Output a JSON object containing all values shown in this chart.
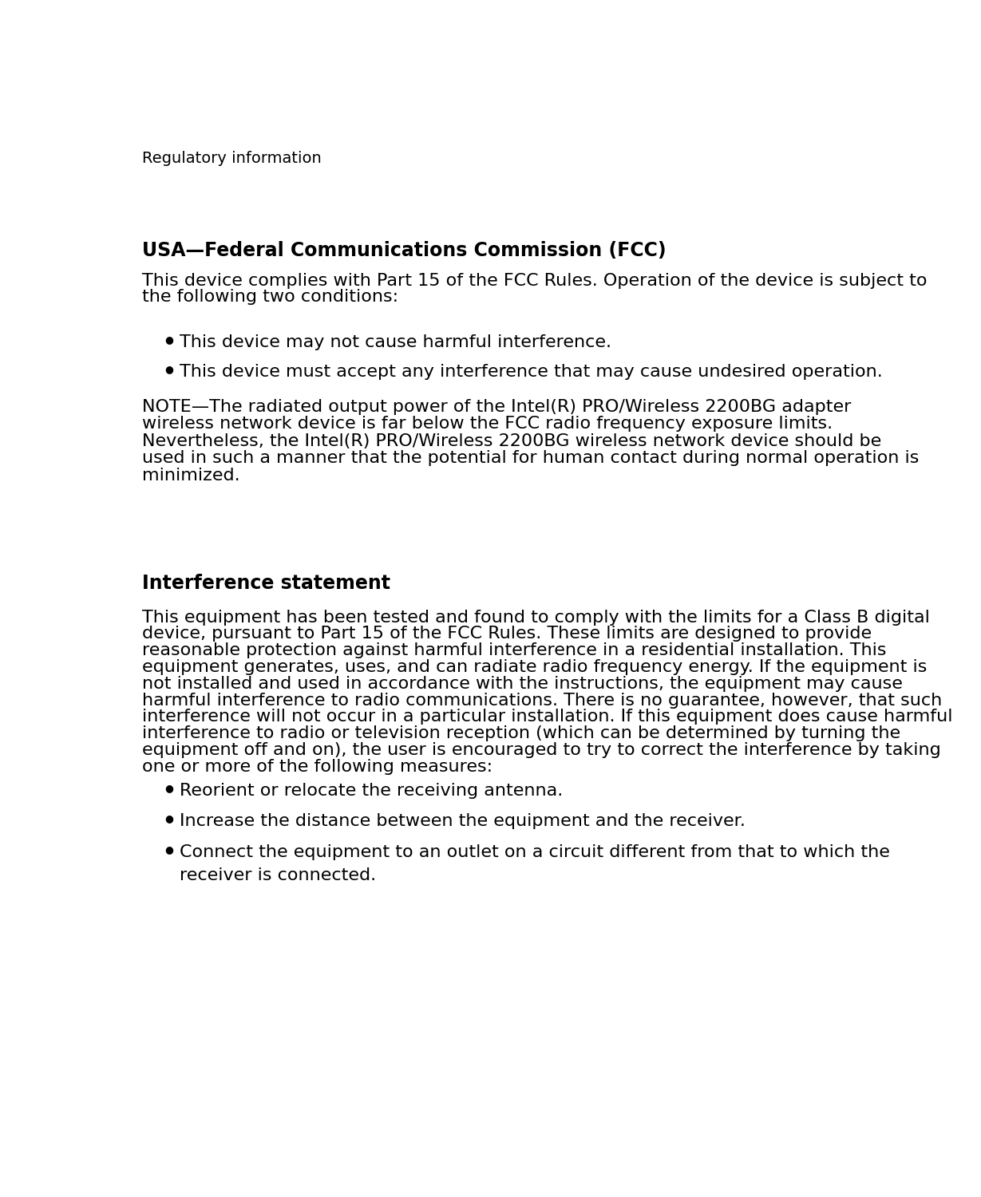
{
  "background_color": "#ffffff",
  "page_header": "Regulatory information",
  "header_fontsize": 14,
  "section1_title": "USA—Federal Communications Commission (FCC)",
  "section1_title_fontsize": 17,
  "section1_body_line1": "This device complies with Part 15 of the FCC Rules. Operation of the device is subject to",
  "section1_body_line2": "the following two conditions:",
  "section1_bullets": [
    "This device may not cause harmful interference.",
    "This device must accept any interference that may cause undesired operation."
  ],
  "section1_note_lines": [
    "NOTE—The radiated output power of the Intel(R) PRO/Wireless 2200BG adapter",
    "wireless network device is far below the FCC radio frequency exposure limits.",
    "Nevertheless, the Intel(R) PRO/Wireless 2200BG wireless network device should be",
    "used in such a manner that the potential for human contact during normal operation is",
    "minimized."
  ],
  "section2_title": "Interference statement",
  "section2_title_fontsize": 17,
  "section2_body_lines": [
    "This equipment has been tested and found to comply with the limits for a Class B digital",
    "device, pursuant to Part 15 of the FCC Rules. These limits are designed to provide",
    "reasonable protection against harmful interference in a residential installation. This",
    "equipment generates, uses, and can radiate radio frequency energy. If the equipment is",
    "not installed and used in accordance with the instructions, the equipment may cause",
    "harmful interference to radio communications. There is no guarantee, however, that such",
    "interference will not occur in a particular installation. If this equipment does cause harmful",
    "interference to radio or television reception (which can be determined by turning the",
    "equipment off and on), the user is encouraged to try to correct the interference by taking",
    "one or more of the following measures:"
  ],
  "section2_bullets": [
    "Reorient or relocate the receiving antenna.",
    "Increase the distance between the equipment and the receiver.",
    "Connect the equipment to an outlet on a circuit different from that to which the\nreceiver is connected."
  ],
  "text_color": "#000000",
  "bullet_char": "●",
  "body_fontsize": 16,
  "note_fontsize": 16
}
